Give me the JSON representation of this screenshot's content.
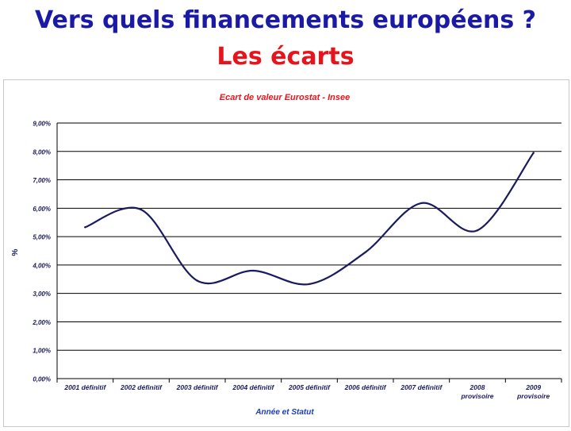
{
  "slide": {
    "title_line1": "Vers quels financements européens ?",
    "title_line2": "Les écarts",
    "title_line1_color": "#1a1aa6",
    "title_line2_color": "#e8141c"
  },
  "chart_data": {
    "type": "line",
    "title": "Ecart de valeur Eurostat - Insee",
    "xlabel": "Année et Statut",
    "ylabel": "%",
    "categories": [
      [
        "2001 définitif"
      ],
      [
        "2002 définitif"
      ],
      [
        "2003 définitif"
      ],
      [
        "2004 définitif"
      ],
      [
        "2005 définitif"
      ],
      [
        "2006 définitif"
      ],
      [
        "2007 définitif"
      ],
      [
        "2008",
        "provisoire"
      ],
      [
        "2009",
        "provisoire"
      ]
    ],
    "series": [
      {
        "values": [
          5.33,
          5.95,
          3.45,
          3.8,
          3.33,
          4.45,
          6.18,
          5.22,
          7.95
        ],
        "color": "#1a1a5e"
      }
    ],
    "ylim": [
      0,
      9
    ],
    "yticks": [
      0,
      1,
      2,
      3,
      4,
      5,
      6,
      7,
      8,
      9
    ],
    "ytick_labels": [
      "0,00%",
      "1,00%",
      "2,00%",
      "3,00%",
      "4,00%",
      "5,00%",
      "6,00%",
      "7,00%",
      "8,00%",
      "9,00%"
    ],
    "grid": true,
    "title_color": "#e8141c",
    "xlabel_color": "#1a3bbf",
    "axis_text_color": "#1a1a5e"
  }
}
